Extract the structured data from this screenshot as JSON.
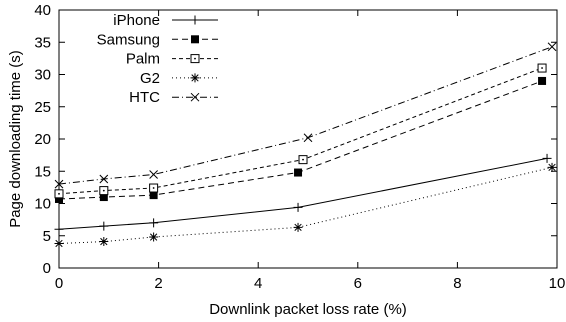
{
  "chart_data": {
    "type": "line",
    "xlabel": "Downlink packet loss rate (%)",
    "ylabel": "Page downloading time (s)",
    "xlim": [
      0,
      10
    ],
    "ylim": [
      0,
      40
    ],
    "xticks": [
      0,
      2,
      4,
      6,
      8,
      10
    ],
    "yticks": [
      0,
      5,
      10,
      15,
      20,
      25,
      30,
      35,
      40
    ],
    "grid": false,
    "legend_position": "top-left",
    "series": [
      {
        "name": "iPhone",
        "marker": "plus",
        "dash": "solid",
        "points": [
          [
            0.0,
            6.0
          ],
          [
            0.9,
            6.5
          ],
          [
            1.9,
            7.0
          ],
          [
            4.8,
            9.4
          ],
          [
            9.8,
            17.0
          ]
        ]
      },
      {
        "name": "Samsung",
        "marker": "filled-square",
        "dash": "dashed",
        "points": [
          [
            0.0,
            10.7
          ],
          [
            0.9,
            11.0
          ],
          [
            1.9,
            11.3
          ],
          [
            4.8,
            14.8
          ],
          [
            9.7,
            29.0
          ]
        ]
      },
      {
        "name": "Palm",
        "marker": "open-square-dot",
        "dash": "short-dashed",
        "points": [
          [
            0.0,
            11.5
          ],
          [
            0.9,
            12.0
          ],
          [
            1.9,
            12.4
          ],
          [
            4.9,
            16.8
          ],
          [
            9.7,
            31.0
          ]
        ]
      },
      {
        "name": "G2",
        "marker": "asterisk",
        "dash": "dotted",
        "points": [
          [
            0.0,
            3.8
          ],
          [
            0.9,
            4.1
          ],
          [
            1.9,
            4.8
          ],
          [
            4.8,
            6.3
          ],
          [
            9.9,
            15.6
          ]
        ]
      },
      {
        "name": "HTC",
        "marker": "cross",
        "dash": "dash-dot",
        "points": [
          [
            0.0,
            13.0
          ],
          [
            0.9,
            13.8
          ],
          [
            1.9,
            14.5
          ],
          [
            5.0,
            20.2
          ],
          [
            9.9,
            34.3
          ]
        ]
      }
    ]
  }
}
